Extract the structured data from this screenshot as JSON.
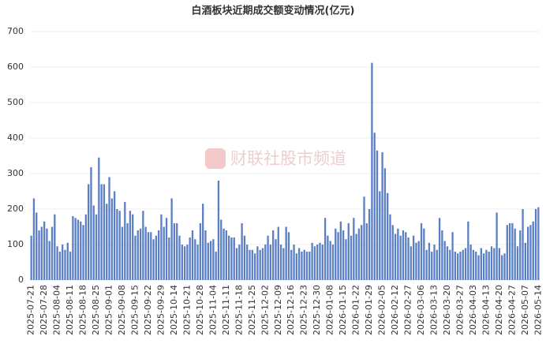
{
  "chart_data": {
    "type": "bar",
    "title": "白酒板块近期成交额变动情况(亿元)",
    "watermark": "财联社股市频道",
    "color": "#5b7fc4",
    "ylim": [
      0,
      700
    ],
    "yticks": [
      0,
      100,
      200,
      300,
      400,
      500,
      600,
      700
    ],
    "grid": true,
    "categories": [
      "2025-07-21",
      null,
      null,
      null,
      null,
      "2025-07-28",
      null,
      null,
      null,
      null,
      "2025-08-04",
      null,
      null,
      null,
      null,
      "2025-08-11",
      null,
      null,
      null,
      null,
      "2025-08-18",
      null,
      null,
      null,
      null,
      "2025-08-25",
      null,
      null,
      null,
      null,
      "2025-09-01",
      null,
      null,
      null,
      null,
      "2025-09-08",
      null,
      null,
      null,
      null,
      "2025-09-15",
      null,
      null,
      null,
      null,
      "2025-09-22",
      null,
      null,
      null,
      null,
      "2025-09-29",
      null,
      null,
      null,
      null,
      "2025-10-14",
      null,
      null,
      null,
      null,
      "2025-10-21",
      null,
      null,
      null,
      null,
      "2025-10-28",
      null,
      null,
      null,
      null,
      "2025-11-04",
      null,
      null,
      null,
      null,
      "2025-11-11",
      null,
      null,
      null,
      null,
      "2025-11-18",
      null,
      null,
      null,
      null,
      "2025-11-25",
      null,
      null,
      null,
      null,
      "2025-12-02",
      null,
      null,
      null,
      null,
      "2025-12-09",
      null,
      null,
      null,
      null,
      "2025-12-16",
      null,
      null,
      null,
      null,
      "2025-12-23",
      null,
      null,
      null,
      null,
      "2025-12-30",
      null,
      null,
      null,
      null,
      "2026-01-08",
      null,
      null,
      null,
      null,
      "2026-01-15",
      null,
      null,
      null,
      null,
      "2026-01-22",
      null,
      null,
      null,
      null,
      "2026-01-29",
      null,
      null,
      null,
      null,
      "2026-02-05",
      null,
      null,
      null,
      null,
      "2026-02-12",
      null,
      null,
      null,
      null,
      "2026-02-27",
      null,
      null,
      null,
      null,
      "2026-03-06",
      null,
      null,
      null,
      null,
      "2026-03-13",
      null,
      null,
      null,
      null,
      "2026-03-20",
      null,
      null,
      null,
      null,
      "2026-03-27",
      null,
      null,
      null,
      null,
      "2026-04-03",
      null,
      null,
      null,
      null,
      "2026-04-13",
      null,
      null,
      null,
      null,
      "2026-04-20",
      null,
      null,
      null,
      null,
      "2026-04-27",
      null,
      null,
      null,
      null,
      "2026-05-07",
      null,
      null,
      null,
      null,
      "2026-05-14"
    ],
    "values": [
      125,
      230,
      190,
      140,
      150,
      165,
      145,
      110,
      150,
      185,
      95,
      80,
      100,
      85,
      105,
      80,
      180,
      175,
      170,
      165,
      155,
      185,
      270,
      318,
      210,
      185,
      345,
      270,
      270,
      215,
      290,
      230,
      250,
      200,
      195,
      150,
      220,
      160,
      195,
      185,
      125,
      140,
      145,
      195,
      150,
      135,
      135,
      115,
      125,
      140,
      185,
      150,
      175,
      120,
      230,
      160,
      160,
      125,
      100,
      95,
      100,
      120,
      140,
      115,
      100,
      160,
      215,
      140,
      105,
      110,
      115,
      80,
      280,
      170,
      145,
      140,
      125,
      120,
      120,
      90,
      100,
      160,
      125,
      100,
      85,
      85,
      75,
      95,
      85,
      90,
      100,
      125,
      100,
      140,
      115,
      150,
      100,
      90,
      150,
      135,
      85,
      100,
      75,
      90,
      80,
      85,
      80,
      80,
      105,
      95,
      100,
      105,
      100,
      175,
      125,
      110,
      100,
      145,
      135,
      165,
      140,
      115,
      160,
      125,
      175,
      130,
      145,
      155,
      235,
      160,
      200,
      612,
      415,
      365,
      250,
      360,
      315,
      245,
      185,
      155,
      130,
      145,
      125,
      140,
      135,
      120,
      95,
      125,
      105,
      110,
      160,
      145,
      85,
      105,
      80,
      100,
      85,
      175,
      140,
      110,
      95,
      85,
      135,
      80,
      75,
      80,
      85,
      90,
      165,
      100,
      85,
      80,
      70,
      90,
      75,
      85,
      80,
      95,
      90,
      190,
      90,
      70,
      75,
      155,
      160,
      160,
      145,
      95,
      140,
      200,
      105,
      150,
      155,
      165,
      200,
      205
    ]
  }
}
